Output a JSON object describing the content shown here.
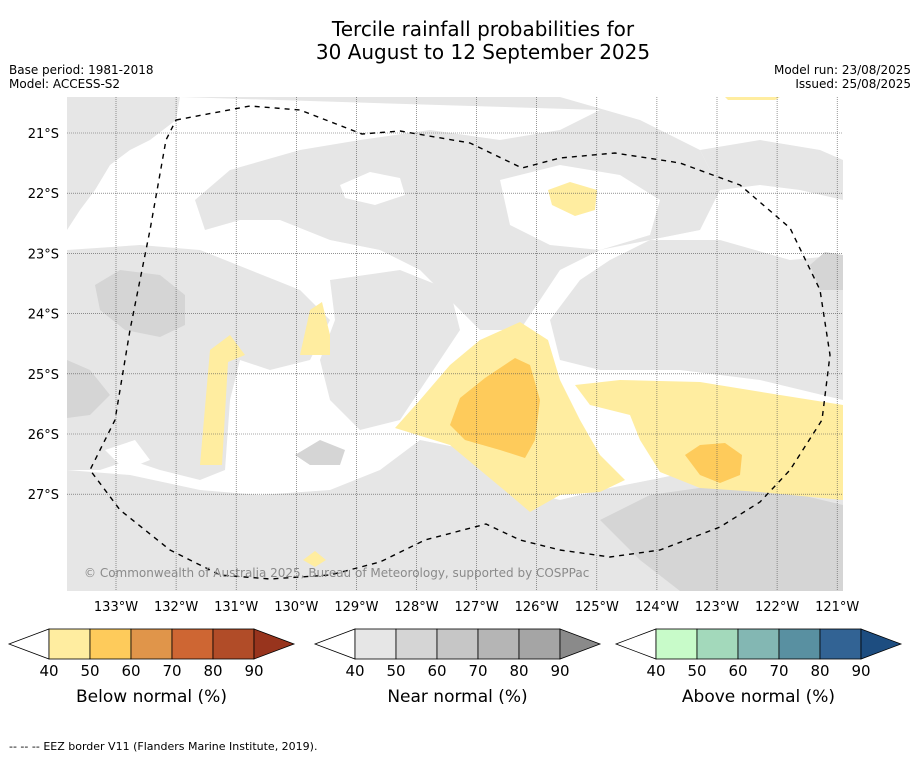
{
  "title": {
    "line1": "Tercile rainfall probabilities for",
    "line2": "30 August to 12 September 2025"
  },
  "meta": {
    "base_period": "Base period: 1981-2018",
    "model": "Model: ACCESS-S2",
    "model_run": "Model run: 23/08/2025",
    "issued": "Issued: 25/08/2025"
  },
  "map": {
    "latitude_labels": [
      "21°S",
      "22°S",
      "23°S",
      "24°S",
      "25°S",
      "26°S",
      "27°S"
    ],
    "longitude_labels": [
      "133°W",
      "132°W",
      "131°W",
      "130°W",
      "129°W",
      "128°W",
      "127°W",
      "126°W",
      "125°W",
      "124°W",
      "123°W",
      "122°W",
      "121°W"
    ],
    "copyright": "© Commonwealth of Australia 2025, Bureau of Meteorology, supported by COSPPac"
  },
  "colorbars": [
    {
      "title": "Below normal (%)",
      "ticks": [
        "40",
        "50",
        "60",
        "70",
        "80",
        "90"
      ],
      "colors": [
        "#ffffff",
        "#ffeda0",
        "#fecb5b",
        "#e0954a",
        "#ce6633",
        "#b14c28",
        "#98341d"
      ]
    },
    {
      "title": "Near normal (%)",
      "ticks": [
        "40",
        "50",
        "60",
        "70",
        "80",
        "90"
      ],
      "colors": [
        "#ffffff",
        "#e6e6e6",
        "#d5d5d5",
        "#c6c6c6",
        "#b5b5b5",
        "#a5a5a5",
        "#8a8a8a"
      ]
    },
    {
      "title": "Above normal (%)",
      "ticks": [
        "40",
        "50",
        "60",
        "70",
        "80",
        "90"
      ],
      "colors": [
        "#ffffff",
        "#c8fbc9",
        "#a3d9bb",
        "#83b7b3",
        "#5990a1",
        "#326394",
        "#1d4d80"
      ]
    }
  ],
  "legend": {
    "eez_line_symbol": "--  --  --",
    "eez_text": "EEZ border V11 (Flanders Marine Institute, 2019)."
  }
}
